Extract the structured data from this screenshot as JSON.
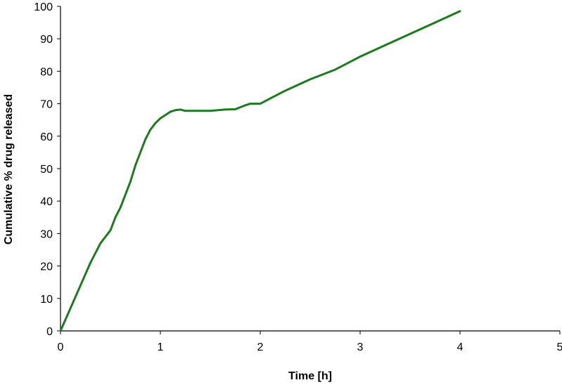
{
  "chart_data": {
    "type": "line",
    "title": "",
    "xlabel": "Time [h]",
    "ylabel": "Cumulative % drug released",
    "xlim": [
      0,
      5
    ],
    "ylim": [
      0,
      100
    ],
    "x_ticks": [
      0,
      1,
      2,
      3,
      4,
      5
    ],
    "y_ticks": [
      0,
      10,
      20,
      30,
      40,
      50,
      60,
      70,
      80,
      90,
      100
    ],
    "grid": false,
    "legend": "none",
    "series": [
      {
        "color": "#1e7a1e",
        "x": [
          0,
          0.1,
          0.2,
          0.3,
          0.4,
          0.5,
          0.55,
          0.6,
          0.65,
          0.7,
          0.75,
          0.8,
          0.85,
          0.9,
          0.95,
          1.0,
          1.05,
          1.1,
          1.15,
          1.2,
          1.25,
          1.5,
          1.65,
          1.75,
          1.85,
          1.9,
          2.0,
          2.25,
          2.5,
          2.75,
          3.0,
          3.25,
          3.5,
          3.75,
          4.0
        ],
        "y": [
          0,
          7,
          14,
          21,
          27,
          31,
          35,
          38,
          42,
          46,
          51,
          55,
          59,
          62,
          64,
          65.5,
          66.5,
          67.5,
          68,
          68.2,
          67.8,
          67.8,
          68.2,
          68.3,
          69.5,
          70,
          70,
          74,
          77.5,
          80.5,
          84.5,
          88,
          91.5,
          95,
          98.5
        ]
      }
    ]
  }
}
